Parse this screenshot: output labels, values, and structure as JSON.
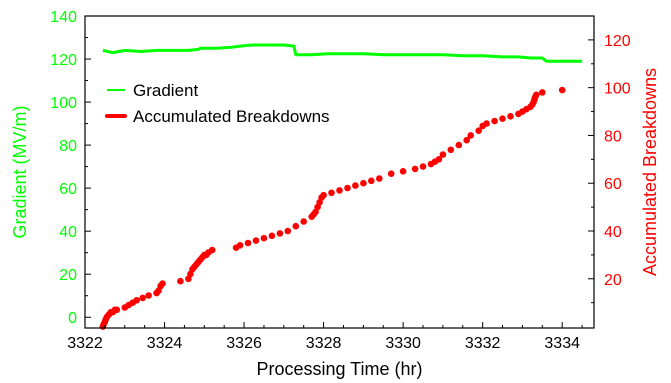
{
  "colors": {
    "gradient": "#00ff00",
    "breakdowns": "#ff0000",
    "axis": "#000000"
  },
  "chart_data": {
    "type": "line",
    "title": "",
    "xlabel_main": "Processing Time",
    "xlabel_unit": "(hr)",
    "ylabel_left": "Gradient (MV/m)",
    "ylabel_right": "Accumulated Breakdowns",
    "xlim": [
      3322,
      3334.8
    ],
    "ylim_left": [
      -5,
      140
    ],
    "ylim_right": [
      -0.6,
      130
    ],
    "x_ticks": [
      3322,
      3324,
      3326,
      3328,
      3330,
      3332,
      3334
    ],
    "x_tick_labels": [
      "3322",
      "3324",
      "3326",
      "3328",
      "3330",
      "3332",
      "3334"
    ],
    "y_left_ticks": [
      0,
      20,
      40,
      60,
      80,
      100,
      120,
      140
    ],
    "y_left_tick_labels": [
      "0",
      "20",
      "40",
      "60",
      "80",
      "100",
      "120",
      "140"
    ],
    "y_right_ticks": [
      20,
      40,
      60,
      80,
      100,
      120
    ],
    "y_right_tick_labels": [
      "20",
      "40",
      "60",
      "80",
      "100",
      "120"
    ],
    "legend_position": "upper-left",
    "series": [
      {
        "name": "Gradient",
        "axis": "left",
        "style": "line",
        "x": [
          3322.45,
          3322.7,
          3323.0,
          3323.4,
          3323.8,
          3324.2,
          3324.6,
          3324.85,
          3324.9,
          3325.3,
          3325.7,
          3325.9,
          3326.2,
          3326.6,
          3327.0,
          3327.25,
          3327.3,
          3327.7,
          3328.1,
          3328.5,
          3329.0,
          3329.5,
          3330.0,
          3330.5,
          3331.0,
          3331.5,
          3332.0,
          3332.5,
          3332.9,
          3333.2,
          3333.5,
          3333.6,
          3334.0,
          3334.5
        ],
        "y": [
          124,
          123,
          124,
          123.5,
          124,
          124,
          124,
          124.5,
          125,
          125,
          125.5,
          126,
          126.5,
          126.5,
          126.5,
          126,
          122,
          122,
          122.5,
          122.5,
          122.5,
          122,
          122,
          122,
          122,
          121.5,
          121.5,
          121,
          121,
          120.5,
          120.5,
          119,
          119,
          119
        ]
      },
      {
        "name": "Accumulated Breakdowns",
        "axis": "right",
        "style": "markers",
        "x": [
          3322.45,
          3322.47,
          3322.5,
          3322.52,
          3322.55,
          3322.6,
          3322.65,
          3322.7,
          3322.75,
          3322.8,
          3323.0,
          3323.1,
          3323.2,
          3323.3,
          3323.45,
          3323.6,
          3323.8,
          3323.85,
          3323.9,
          3323.95,
          3324.4,
          3324.6,
          3324.65,
          3324.7,
          3324.75,
          3324.8,
          3324.85,
          3324.9,
          3324.95,
          3325.0,
          3325.05,
          3325.1,
          3325.2,
          3325.8,
          3325.9,
          3326.1,
          3326.3,
          3326.5,
          3326.7,
          3326.9,
          3327.1,
          3327.3,
          3327.5,
          3327.7,
          3327.75,
          3327.8,
          3327.85,
          3327.9,
          3327.95,
          3328.0,
          3328.2,
          3328.4,
          3328.6,
          3328.8,
          3329.0,
          3329.2,
          3329.4,
          3329.7,
          3330.0,
          3330.3,
          3330.5,
          3330.7,
          3330.8,
          3330.9,
          3331.0,
          3331.2,
          3331.4,
          3331.6,
          3331.7,
          3331.9,
          3332.0,
          3332.1,
          3332.3,
          3332.5,
          3332.7,
          3332.9,
          3333.0,
          3333.1,
          3333.2,
          3333.25,
          3333.28,
          3333.3,
          3333.32,
          3333.35,
          3333.5,
          3334.0
        ],
        "y": [
          0,
          1,
          2,
          3,
          4,
          5,
          6,
          6,
          7,
          7,
          8,
          9,
          10,
          11,
          12,
          13,
          14,
          15,
          17,
          18,
          19,
          20,
          22,
          24,
          25,
          26,
          27,
          28,
          29,
          30,
          30,
          31,
          32,
          33,
          34,
          35,
          36,
          37,
          38,
          39,
          40,
          42,
          44,
          46,
          47,
          48,
          50,
          52,
          54,
          55,
          56,
          57,
          58,
          59,
          60,
          61,
          62,
          64,
          65,
          66,
          67,
          68,
          69,
          70,
          72,
          74,
          76,
          78,
          80,
          82,
          84,
          85,
          86,
          87,
          88,
          89,
          90,
          91,
          92,
          93,
          94,
          95,
          96,
          97,
          98,
          99
        ]
      }
    ]
  }
}
